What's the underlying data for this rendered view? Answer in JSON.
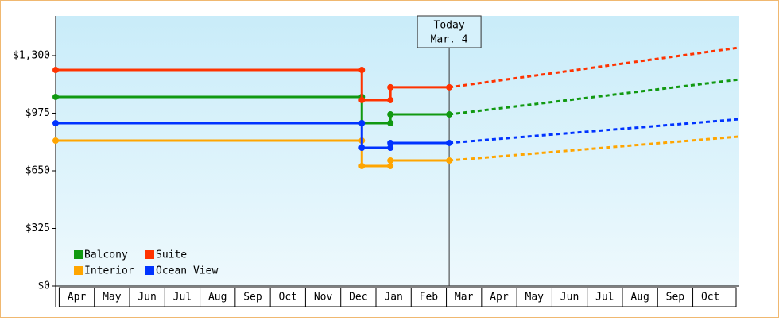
{
  "chart_data": {
    "type": "line",
    "annotation": {
      "title": "Today",
      "date": "Mar. 4",
      "x": 11.08
    },
    "categories": [
      "Apr",
      "May",
      "Jun",
      "Jul",
      "Aug",
      "Sep",
      "Oct",
      "Nov",
      "Dec",
      "Jan",
      "Feb",
      "Mar",
      "Apr",
      "May",
      "Jun",
      "Jul",
      "Aug",
      "Sep",
      "Oct"
    ],
    "xlim": [
      -0.1,
      19.32
    ],
    "ylim": [
      0,
      1524
    ],
    "yticks": [
      {
        "value": 0,
        "label": "$0"
      },
      {
        "value": 325,
        "label": "$325"
      },
      {
        "value": 650,
        "label": "$650"
      },
      {
        "value": 975,
        "label": "$975"
      },
      {
        "value": 1300,
        "label": "$1,300"
      }
    ],
    "series": [
      {
        "name": "Balcony",
        "color": "#119911",
        "x": [
          -0.1,
          8.6,
          8.6,
          9.41,
          9.41,
          11.08
        ],
        "values": [
          1067,
          1067,
          919,
          919,
          968,
          968
        ],
        "forecast_x": [
          11.08,
          19.32
        ],
        "forecast_values": [
          968,
          1165
        ]
      },
      {
        "name": "Suite",
        "color": "#ff3300",
        "x": [
          -0.1,
          8.6,
          8.6,
          9.41,
          9.41,
          11.08
        ],
        "values": [
          1219,
          1219,
          1049,
          1049,
          1121,
          1121
        ],
        "forecast_x": [
          11.08,
          19.32
        ],
        "forecast_values": [
          1121,
          1345
        ]
      },
      {
        "name": "Interior",
        "color": "#ffa500",
        "x": [
          -0.1,
          8.6,
          8.6,
          9.41,
          9.41,
          11.08
        ],
        "values": [
          820,
          820,
          677,
          677,
          708,
          708
        ],
        "forecast_x": [
          11.08,
          19.32
        ],
        "forecast_values": [
          708,
          843
        ]
      },
      {
        "name": "Ocean View",
        "color": "#0033ff",
        "x": [
          -0.1,
          8.6,
          8.6,
          9.41,
          9.41,
          11.08
        ],
        "values": [
          919,
          919,
          780,
          780,
          807,
          807
        ],
        "forecast_x": [
          11.08,
          19.32
        ],
        "forecast_values": [
          807,
          941
        ]
      }
    ]
  }
}
